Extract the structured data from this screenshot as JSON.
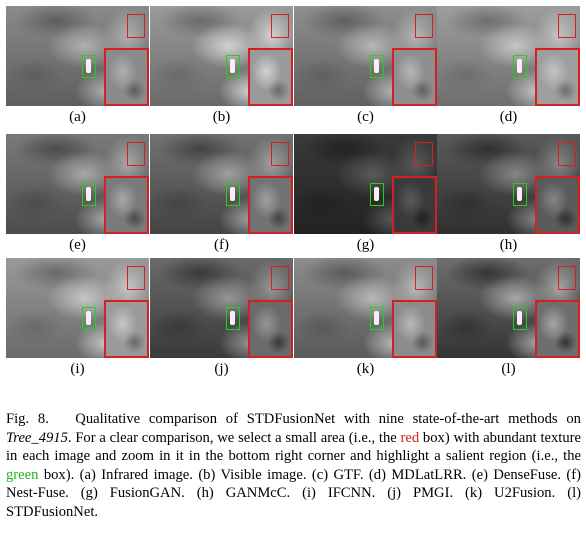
{
  "panels": [
    {
      "label": "(a)",
      "tone": "#8a8a8a",
      "dark": "#5e5e5e",
      "light": "#b0b0b0"
    },
    {
      "label": "(b)",
      "tone": "#9a9a9a",
      "dark": "#6a6a6a",
      "light": "#d2d2d2"
    },
    {
      "label": "(c)",
      "tone": "#8e8e8e",
      "dark": "#606060",
      "light": "#b6b6b6"
    },
    {
      "label": "(d)",
      "tone": "#9e9e9e",
      "dark": "#6e6e6e",
      "light": "#c4c4c4"
    },
    {
      "label": "(e)",
      "tone": "#7a7a7a",
      "dark": "#4c4c4c",
      "light": "#a8a8a8"
    },
    {
      "label": "(f)",
      "tone": "#727272",
      "dark": "#444444",
      "light": "#a0a0a0"
    },
    {
      "label": "(g)",
      "tone": "#3a3a3a",
      "dark": "#222222",
      "light": "#5a5a5a"
    },
    {
      "label": "(h)",
      "tone": "#5a5a5a",
      "dark": "#303030",
      "light": "#868686"
    },
    {
      "label": "(i)",
      "tone": "#9a9a9a",
      "dark": "#6a6a6a",
      "light": "#c6c6c6"
    },
    {
      "label": "(j)",
      "tone": "#6a6a6a",
      "dark": "#3a3a3a",
      "light": "#969696"
    },
    {
      "label": "(k)",
      "tone": "#8c8c8c",
      "dark": "#5a5a5a",
      "light": "#b8b8b8"
    },
    {
      "label": "(l)",
      "tone": "#6e6e6e",
      "dark": "#343434",
      "light": "#a6a6a6"
    }
  ],
  "colors": {
    "red_box": "#d81e1e",
    "green_box": "#1ed21e"
  },
  "caption": {
    "fig": "Fig. 8.",
    "part1": "Qualitative comparison of STDFusionNet with nine state-of-the-art methods on ",
    "dataset": "Tree_4915",
    "part2": ". For a clear comparison, we select a small area (i.e., the ",
    "red_word": "red",
    "part3": " box) with abundant texture in each image and zoom in it in the bottom right corner and highlight a salient region (i.e., the ",
    "green_word": "green",
    "part4": " box). (a) Infrared image. (b) Visible image. (c) GTF. (d) MDLatLRR. (e) DenseFuse. (f) Nest-Fuse. (g) FusionGAN. (h) GANMcC. (i) IFCNN. (j) PMGI. (k) U2Fusion. (l) STDFusionNet."
  }
}
